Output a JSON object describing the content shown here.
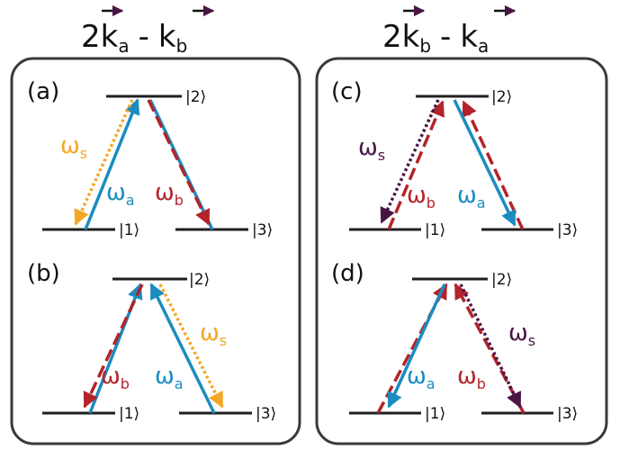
{
  "colors": {
    "teal": "#1a8cc0",
    "red": "#b3232b",
    "orange": "#f5a623",
    "purple": "#4a1443",
    "line": "#1f1f1f",
    "frame": "#3a3a3a"
  },
  "headers": {
    "left": {
      "coef": "2",
      "k1": "k",
      "s1": "a",
      "op": "-",
      "k2": "k",
      "s2": "b"
    },
    "right": {
      "coef": "2",
      "k1": "k",
      "s1": "b",
      "op": "-",
      "k2": "k",
      "s2": "a"
    }
  },
  "levels": {
    "l1": "|1⟩",
    "l2": "|2⟩",
    "l3": "|3⟩"
  },
  "panels": {
    "a": {
      "label": "(a)",
      "omega_s": "ω",
      "sub_s": "s",
      "omega_a": "ω",
      "sub_a": "a",
      "omega_b": "ω",
      "sub_b": "b"
    },
    "b": {
      "label": "(b)",
      "omega_s": "ω",
      "sub_s": "s",
      "omega_a": "ω",
      "sub_a": "a",
      "omega_b": "ω",
      "sub_b": "b"
    },
    "c": {
      "label": "(c)",
      "omega_s": "ω",
      "sub_s": "s",
      "omega_a": "ω",
      "sub_a": "a",
      "omega_b": "ω",
      "sub_b": "b"
    },
    "d": {
      "label": "(d)",
      "omega_s": "ω",
      "sub_s": "s",
      "omega_a": "ω",
      "sub_a": "a",
      "omega_b": "ω",
      "sub_b": "b"
    }
  }
}
